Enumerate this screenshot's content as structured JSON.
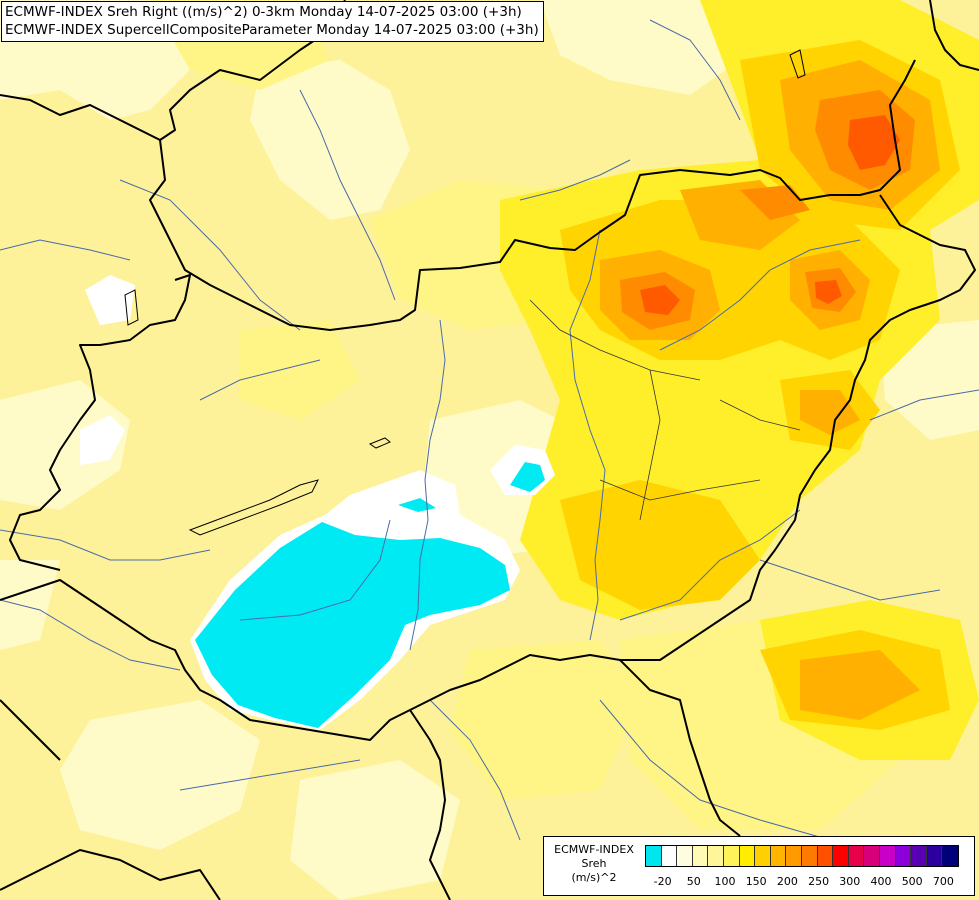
{
  "titles": {
    "line1": "ECMWF-INDEX Sreh Right ((m/s)^2) 0-3km Monday 14-07-2025 03:00 (+3h)",
    "line2": "ECMWF-INDEX SupercellCompositeParameter Monday 14-07-2025 03:00 (+3h)"
  },
  "legend": {
    "label_line1": "ECMWF-INDEX",
    "label_line2": "Sreh",
    "label_line3": "(m/s)^2",
    "colors": [
      "#00e5ee",
      "#ffffff",
      "#fffde0",
      "#fffbb4",
      "#fff69a",
      "#fff35a",
      "#ffee00",
      "#ffd000",
      "#ffb400",
      "#ff9a00",
      "#ff7a00",
      "#ff5000",
      "#ff0000",
      "#e8004a",
      "#d8007a",
      "#c800c8",
      "#8c00dc",
      "#5a00b4",
      "#2c00a0",
      "#000078"
    ],
    "ticks": [
      "-20",
      "50",
      "100",
      "150",
      "200",
      "250",
      "300",
      "400",
      "500",
      "700"
    ]
  },
  "map": {
    "icons": [
      "country-border",
      "river",
      "lake",
      "sreh-field-shading"
    ]
  }
}
